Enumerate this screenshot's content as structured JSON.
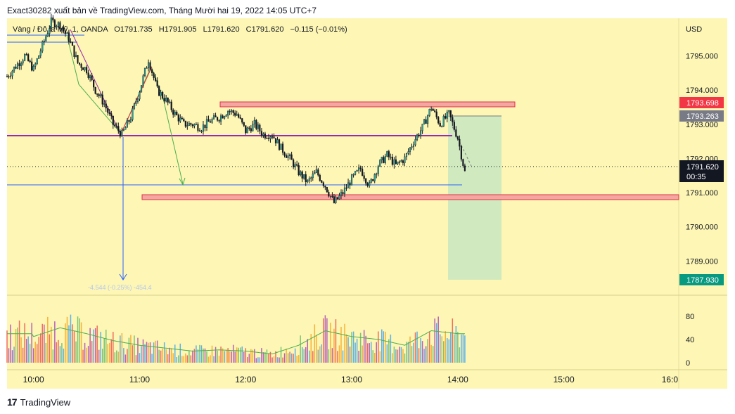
{
  "header": {
    "publish_line": "Exact30282 xuất bản về TradingView.com, Tháng Mười hai 19, 2022 14:05 UTC+7"
  },
  "legend": {
    "symbol": "Vàng / Đô la Mỹ, 1, OANDA",
    "open": "O1791.735",
    "high": "H1791.905",
    "low": "L1791.620",
    "close": "C1791.620",
    "change": "−0.115 (−0.01%)"
  },
  "axis": {
    "currency": "USD",
    "price_ticks": [
      "1795.000",
      "1794.000",
      "1793.000",
      "1792.000",
      "1791.000",
      "1790.000",
      "1789.000"
    ],
    "volume_ticks": [
      "80",
      "40",
      "0"
    ],
    "time_ticks": [
      "10:00",
      "11:00",
      "12:00",
      "13:00",
      "14:00",
      "15:00",
      "16:0"
    ]
  },
  "price_labels": {
    "resistance": "1793.698",
    "entry": "1793.263",
    "last": "1791.620",
    "countdown": "00:35",
    "target": "1787.930"
  },
  "measure_text": "-4.544 (-0.25%) -454.4",
  "logo_text": "TradingView",
  "colors": {
    "background": "#fdf6b4",
    "up_candle": "#26a69a",
    "down_candle": "#131722",
    "zone_fill": "#f4a6a0",
    "zone_border": "#e0304a",
    "target_zone": "#c8e6c0",
    "resistance_label": "#f23645",
    "entry_label": "#787b86",
    "last_label": "#131722",
    "target_label": "#089981",
    "ma_line": "#4caf50",
    "blue_line": "#2962ff",
    "purple_line": "#9c27b0"
  },
  "chart_data": {
    "type": "candlestick",
    "symbol": "XAU/USD",
    "interval": "1",
    "ylim": [
      1788.0,
      1796.1
    ],
    "xlim": [
      "09:45",
      "16:05"
    ],
    "volume_ylim": [
      0,
      104
    ],
    "price_series": [
      {
        "t": "09:45",
        "p": 1794.4
      },
      {
        "t": "09:50",
        "p": 1794.7
      },
      {
        "t": "09:55",
        "p": 1795.0
      },
      {
        "t": "10:00",
        "p": 1794.6
      },
      {
        "t": "10:05",
        "p": 1795.3
      },
      {
        "t": "10:10",
        "p": 1796.0
      },
      {
        "t": "10:15",
        "p": 1795.9
      },
      {
        "t": "10:20",
        "p": 1795.5
      },
      {
        "t": "10:25",
        "p": 1794.8
      },
      {
        "t": "10:30",
        "p": 1794.6
      },
      {
        "t": "10:35",
        "p": 1794.0
      },
      {
        "t": "10:40",
        "p": 1793.6
      },
      {
        "t": "10:45",
        "p": 1793.0
      },
      {
        "t": "10:50",
        "p": 1792.7
      },
      {
        "t": "10:55",
        "p": 1793.2
      },
      {
        "t": "11:00",
        "p": 1794.0
      },
      {
        "t": "11:05",
        "p": 1794.9
      },
      {
        "t": "11:10",
        "p": 1794.0
      },
      {
        "t": "11:15",
        "p": 1793.7
      },
      {
        "t": "11:20",
        "p": 1793.3
      },
      {
        "t": "11:25",
        "p": 1793.0
      },
      {
        "t": "11:30",
        "p": 1793.0
      },
      {
        "t": "11:35",
        "p": 1792.9
      },
      {
        "t": "11:40",
        "p": 1793.1
      },
      {
        "t": "11:45",
        "p": 1793.2
      },
      {
        "t": "11:50",
        "p": 1793.4
      },
      {
        "t": "11:55",
        "p": 1793.3
      },
      {
        "t": "12:00",
        "p": 1792.8
      },
      {
        "t": "12:05",
        "p": 1793.0
      },
      {
        "t": "12:10",
        "p": 1792.7
      },
      {
        "t": "12:15",
        "p": 1792.7
      },
      {
        "t": "12:20",
        "p": 1792.3
      },
      {
        "t": "12:25",
        "p": 1792.0
      },
      {
        "t": "12:30",
        "p": 1791.6
      },
      {
        "t": "12:35",
        "p": 1791.3
      },
      {
        "t": "12:40",
        "p": 1791.6
      },
      {
        "t": "12:45",
        "p": 1791.2
      },
      {
        "t": "12:50",
        "p": 1790.7
      },
      {
        "t": "12:55",
        "p": 1791.0
      },
      {
        "t": "13:00",
        "p": 1791.4
      },
      {
        "t": "13:05",
        "p": 1791.7
      },
      {
        "t": "13:10",
        "p": 1791.2
      },
      {
        "t": "13:15",
        "p": 1791.8
      },
      {
        "t": "13:20",
        "p": 1792.1
      },
      {
        "t": "13:25",
        "p": 1791.8
      },
      {
        "t": "13:30",
        "p": 1792.0
      },
      {
        "t": "13:35",
        "p": 1792.5
      },
      {
        "t": "13:40",
        "p": 1792.9
      },
      {
        "t": "13:45",
        "p": 1793.5
      },
      {
        "t": "13:50",
        "p": 1793.0
      },
      {
        "t": "13:55",
        "p": 1793.3
      },
      {
        "t": "14:00",
        "p": 1792.6
      },
      {
        "t": "14:04",
        "p": 1791.6
      }
    ],
    "volume_series": [
      {
        "t": "10:00",
        "v": 45
      },
      {
        "t": "10:15",
        "v": 60
      },
      {
        "t": "10:30",
        "v": 50
      },
      {
        "t": "10:45",
        "v": 38
      },
      {
        "t": "11:00",
        "v": 30
      },
      {
        "t": "11:15",
        "v": 25
      },
      {
        "t": "11:30",
        "v": 20
      },
      {
        "t": "11:45",
        "v": 22
      },
      {
        "t": "12:00",
        "v": 20
      },
      {
        "t": "12:15",
        "v": 15
      },
      {
        "t": "12:30",
        "v": 30
      },
      {
        "t": "12:45",
        "v": 55
      },
      {
        "t": "13:00",
        "v": 45
      },
      {
        "t": "13:15",
        "v": 40
      },
      {
        "t": "13:30",
        "v": 30
      },
      {
        "t": "13:45",
        "v": 55
      },
      {
        "t": "14:00",
        "v": 50
      }
    ],
    "horizontal_levels": [
      {
        "label": "resistance zone",
        "from": 1793.62,
        "to": 1793.78
      },
      {
        "label": "support zone",
        "from": 1790.52,
        "to": 1790.68
      },
      {
        "label": "entry",
        "value": 1793.263
      },
      {
        "label": "last",
        "value": 1791.62
      },
      {
        "label": "target",
        "value": 1787.93
      }
    ]
  }
}
